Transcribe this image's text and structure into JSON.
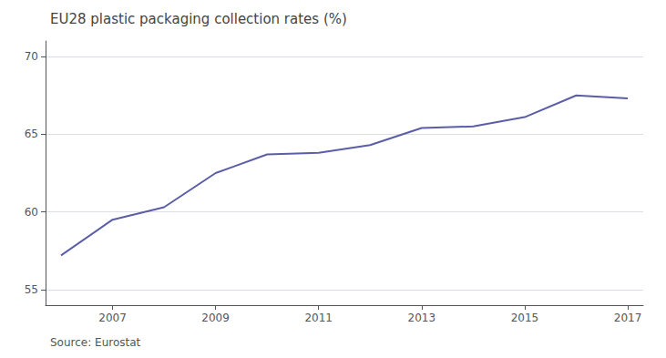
{
  "chart_data": {
    "type": "line",
    "title": "EU28 plastic packaging collection rates (%)",
    "annotations": [
      "Source: Eurostat"
    ],
    "x": [
      2006,
      2007,
      2008,
      2009,
      2010,
      2011,
      2012,
      2013,
      2014,
      2015,
      2016,
      2017
    ],
    "values": [
      57.2,
      59.5,
      60.3,
      62.5,
      63.7,
      63.8,
      64.3,
      65.4,
      65.5,
      66.1,
      67.5,
      67.3
    ],
    "color": "#5b5ea6",
    "xlim": [
      2005.7,
      2017.3
    ],
    "xticks": [
      2007,
      2009,
      2011,
      2013,
      2015,
      2017
    ],
    "ylim": [
      54,
      71
    ],
    "yticks": [
      55,
      60,
      65,
      70
    ],
    "grid": true
  }
}
